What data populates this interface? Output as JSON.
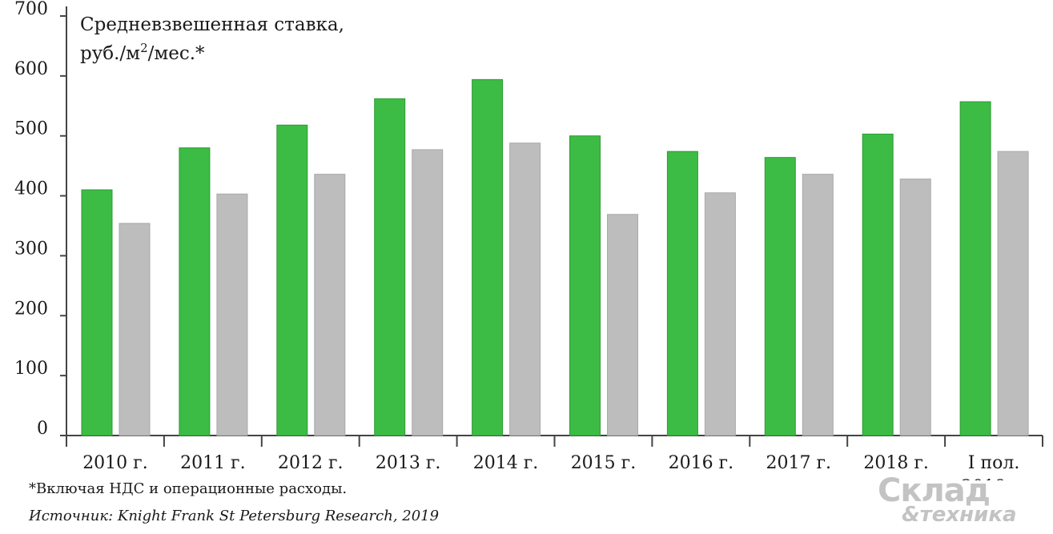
{
  "chart_data": {
    "type": "bar",
    "title": "Средневзвешенная ставка,",
    "subtitle_prefix": "руб./м",
    "subtitle_sup": "2",
    "subtitle_suffix": "/мес.*",
    "categories": [
      "2010 г.",
      "2011 г.",
      "2012 г.",
      "2013 г.",
      "2014 г.",
      "2015 г.",
      "2016 г.",
      "2017 г.",
      "2018 г.",
      "I пол. 2019 г."
    ],
    "category_lines": [
      [
        "2010 г."
      ],
      [
        "2011 г."
      ],
      [
        "2012 г."
      ],
      [
        "2013 г."
      ],
      [
        "2014 г."
      ],
      [
        "2015 г."
      ],
      [
        "2016 г."
      ],
      [
        "2017 г."
      ],
      [
        "2018 г."
      ],
      [
        "I пол.",
        "2019 г."
      ]
    ],
    "series": [
      {
        "values": [
          410,
          480,
          518,
          562,
          594,
          500,
          474,
          464,
          503,
          557
        ],
        "color": "#3cbc44"
      },
      {
        "values": [
          354,
          403,
          436,
          477,
          488,
          369,
          405,
          436,
          428,
          474
        ],
        "color": "#bdbdbd"
      }
    ],
    "ylim": [
      0,
      700
    ],
    "yticks": [
      "0",
      "100",
      "200",
      "300",
      "400",
      "500",
      "600",
      "700"
    ],
    "grid": false,
    "xlabel": "",
    "ylabel": ""
  },
  "footnote": "*Включая НДС и операционные расходы.",
  "source": "Источник: Knight Frank St Petersburg Research, 2019",
  "watermark": {
    "line1": "Склад",
    "line2": "&техника"
  }
}
